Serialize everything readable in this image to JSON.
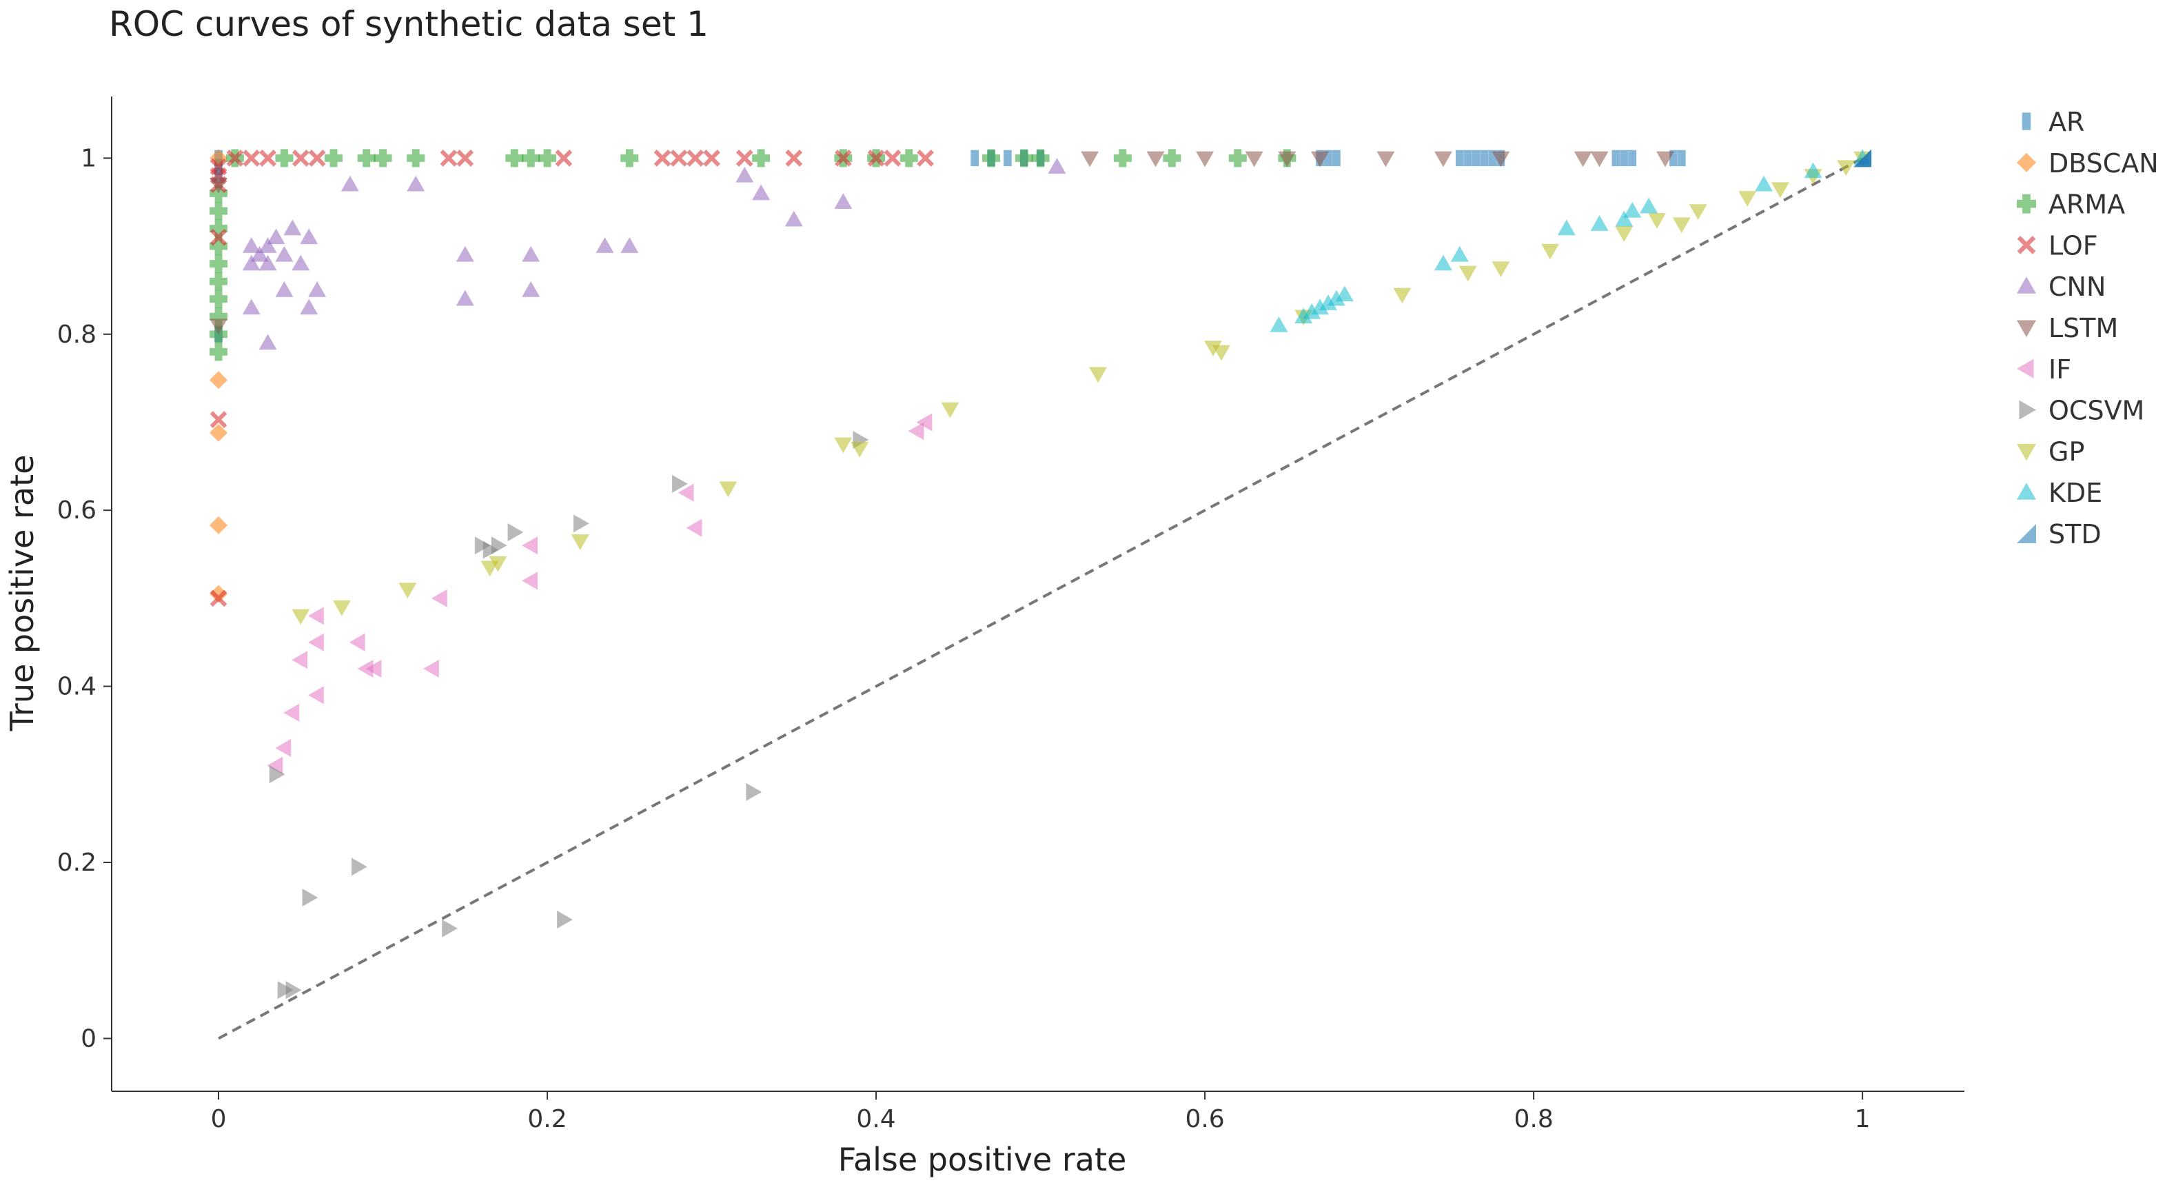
{
  "chart_data": {
    "type": "scatter",
    "title": "ROC curves of synthetic data set 1",
    "xlabel": "False positive rate",
    "ylabel": "True positive rate",
    "xlim": [
      -0.065,
      1.062
    ],
    "ylim": [
      -0.06,
      1.07
    ],
    "xticks": [
      0,
      0.2,
      0.4,
      0.6,
      0.8,
      1
    ],
    "xtick_labels": [
      "0",
      "0.2",
      "0.4",
      "0.6",
      "0.8",
      "1"
    ],
    "yticks": [
      0,
      0.2,
      0.4,
      0.6,
      0.8,
      1
    ],
    "ytick_labels": [
      "0",
      "0.2",
      "0.4",
      "0.6",
      "0.8",
      "1"
    ],
    "grid": false,
    "legend_position": "right",
    "diagonal_reference": {
      "from": [
        0,
        0
      ],
      "to": [
        1,
        1
      ],
      "color": "#777777",
      "style": "dashed"
    },
    "series": [
      {
        "name": "AR",
        "color": "#1f77b4",
        "marker": "square",
        "points": [
          [
            0,
            1
          ],
          [
            0,
            0.99
          ],
          [
            0,
            0.98
          ],
          [
            0,
            0.8
          ],
          [
            0.46,
            1
          ],
          [
            0.47,
            1
          ],
          [
            0.48,
            1
          ],
          [
            0.49,
            1
          ],
          [
            0.5,
            1
          ],
          [
            0.67,
            1
          ],
          [
            0.675,
            1
          ],
          [
            0.68,
            1
          ],
          [
            0.755,
            1
          ],
          [
            0.76,
            1
          ],
          [
            0.765,
            1
          ],
          [
            0.77,
            1
          ],
          [
            0.775,
            1
          ],
          [
            0.78,
            1
          ],
          [
            0.85,
            1
          ],
          [
            0.855,
            1
          ],
          [
            0.86,
            1
          ],
          [
            0.885,
            1
          ],
          [
            0.89,
            1
          ]
        ]
      },
      {
        "name": "DBSCAN",
        "color": "#ff7f0e",
        "marker": "diamond",
        "points": [
          [
            0,
            0.748
          ],
          [
            0,
            0.688
          ],
          [
            0,
            0.583
          ],
          [
            0,
            0.505
          ],
          [
            0,
            1
          ]
        ]
      },
      {
        "name": "ARMA",
        "color": "#2ca02c",
        "marker": "plus",
        "points": [
          [
            0,
            0.78
          ],
          [
            0,
            0.8
          ],
          [
            0,
            0.82
          ],
          [
            0,
            0.84
          ],
          [
            0,
            0.86
          ],
          [
            0,
            0.88
          ],
          [
            0,
            0.9
          ],
          [
            0,
            0.92
          ],
          [
            0,
            0.94
          ],
          [
            0,
            0.96
          ],
          [
            0.01,
            1
          ],
          [
            0.04,
            1
          ],
          [
            0.07,
            1
          ],
          [
            0.09,
            1
          ],
          [
            0.1,
            1
          ],
          [
            0.12,
            1
          ],
          [
            0.18,
            1
          ],
          [
            0.19,
            1
          ],
          [
            0.2,
            1
          ],
          [
            0.25,
            1
          ],
          [
            0.33,
            1
          ],
          [
            0.38,
            1
          ],
          [
            0.4,
            1
          ],
          [
            0.42,
            1
          ],
          [
            0.47,
            1
          ],
          [
            0.49,
            1
          ],
          [
            0.5,
            1
          ],
          [
            0.55,
            1
          ],
          [
            0.58,
            1
          ],
          [
            0.62,
            1
          ],
          [
            0.65,
            1
          ]
        ]
      },
      {
        "name": "LOF",
        "color": "#d62728",
        "marker": "x",
        "points": [
          [
            0,
            0.5
          ],
          [
            0,
            0.703
          ],
          [
            0,
            0.91
          ],
          [
            0,
            0.97
          ],
          [
            0,
            0.98
          ],
          [
            0,
            0.99
          ],
          [
            0.01,
            1
          ],
          [
            0.02,
            1
          ],
          [
            0.03,
            1
          ],
          [
            0.05,
            1
          ],
          [
            0.06,
            1
          ],
          [
            0.14,
            1
          ],
          [
            0.15,
            1
          ],
          [
            0.21,
            1
          ],
          [
            0.27,
            1
          ],
          [
            0.28,
            1
          ],
          [
            0.29,
            1
          ],
          [
            0.3,
            1
          ],
          [
            0.32,
            1
          ],
          [
            0.35,
            1
          ],
          [
            0.38,
            1
          ],
          [
            0.4,
            1
          ],
          [
            0.41,
            1
          ],
          [
            0.43,
            1
          ]
        ]
      },
      {
        "name": "CNN",
        "color": "#9467bd",
        "marker": "triangle-up",
        "points": [
          [
            0.02,
            0.83
          ],
          [
            0.02,
            0.88
          ],
          [
            0.02,
            0.9
          ],
          [
            0.025,
            0.89
          ],
          [
            0.03,
            0.79
          ],
          [
            0.03,
            0.9
          ],
          [
            0.03,
            0.88
          ],
          [
            0.035,
            0.91
          ],
          [
            0.04,
            0.89
          ],
          [
            0.04,
            0.85
          ],
          [
            0.045,
            0.92
          ],
          [
            0.05,
            0.88
          ],
          [
            0.055,
            0.91
          ],
          [
            0.055,
            0.83
          ],
          [
            0.06,
            0.85
          ],
          [
            0.08,
            0.97
          ],
          [
            0.12,
            0.97
          ],
          [
            0.15,
            0.89
          ],
          [
            0.15,
            0.84
          ],
          [
            0.19,
            0.89
          ],
          [
            0.19,
            0.85
          ],
          [
            0.235,
            0.9
          ],
          [
            0.25,
            0.9
          ],
          [
            0.32,
            0.98
          ],
          [
            0.33,
            0.96
          ],
          [
            0.35,
            0.93
          ],
          [
            0.38,
            0.95
          ],
          [
            0.51,
            0.99
          ]
        ]
      },
      {
        "name": "LSTM",
        "color": "#8c564b",
        "marker": "triangle-down",
        "points": [
          [
            0,
            0.81
          ],
          [
            0,
            0.97
          ],
          [
            0.53,
            1
          ],
          [
            0.57,
            1
          ],
          [
            0.6,
            1
          ],
          [
            0.63,
            1
          ],
          [
            0.65,
            1
          ],
          [
            0.67,
            1
          ],
          [
            0.71,
            1
          ],
          [
            0.745,
            1
          ],
          [
            0.78,
            1
          ],
          [
            0.83,
            1
          ],
          [
            0.84,
            1
          ],
          [
            0.88,
            1
          ]
        ]
      },
      {
        "name": "IF",
        "color": "#e377c2",
        "marker": "triangle-left",
        "points": [
          [
            0.035,
            0.31
          ],
          [
            0.04,
            0.33
          ],
          [
            0.045,
            0.37
          ],
          [
            0.05,
            0.43
          ],
          [
            0.06,
            0.39
          ],
          [
            0.06,
            0.45
          ],
          [
            0.06,
            0.48
          ],
          [
            0.085,
            0.45
          ],
          [
            0.09,
            0.42
          ],
          [
            0.095,
            0.42
          ],
          [
            0.13,
            0.42
          ],
          [
            0.135,
            0.5
          ],
          [
            0.19,
            0.52
          ],
          [
            0.19,
            0.56
          ],
          [
            0.29,
            0.58
          ],
          [
            0.285,
            0.62
          ],
          [
            0.425,
            0.69
          ],
          [
            0.43,
            0.7
          ]
        ]
      },
      {
        "name": "OCSVM",
        "color": "#7f7f7f",
        "marker": "triangle-right",
        "points": [
          [
            0.035,
            0.3
          ],
          [
            0.04,
            0.055
          ],
          [
            0.045,
            0.055
          ],
          [
            0.055,
            0.16
          ],
          [
            0.085,
            0.195
          ],
          [
            0.14,
            0.125
          ],
          [
            0.16,
            0.56
          ],
          [
            0.165,
            0.555
          ],
          [
            0.17,
            0.56
          ],
          [
            0.18,
            0.575
          ],
          [
            0.21,
            0.135
          ],
          [
            0.22,
            0.585
          ],
          [
            0.28,
            0.63
          ],
          [
            0.325,
            0.28
          ],
          [
            0.39,
            0.68
          ]
        ]
      },
      {
        "name": "GP",
        "color": "#bcbd22",
        "marker": "triangle-down",
        "points": [
          [
            0.05,
            0.48
          ],
          [
            0.075,
            0.49
          ],
          [
            0.115,
            0.51
          ],
          [
            0.165,
            0.535
          ],
          [
            0.17,
            0.54
          ],
          [
            0.22,
            0.565
          ],
          [
            0.31,
            0.625
          ],
          [
            0.38,
            0.675
          ],
          [
            0.39,
            0.67
          ],
          [
            0.445,
            0.715
          ],
          [
            0.535,
            0.755
          ],
          [
            0.605,
            0.785
          ],
          [
            0.61,
            0.78
          ],
          [
            0.66,
            0.82
          ],
          [
            0.72,
            0.845
          ],
          [
            0.76,
            0.87
          ],
          [
            0.78,
            0.875
          ],
          [
            0.81,
            0.895
          ],
          [
            0.855,
            0.915
          ],
          [
            0.875,
            0.93
          ],
          [
            0.89,
            0.925
          ],
          [
            0.9,
            0.94
          ],
          [
            0.93,
            0.955
          ],
          [
            0.95,
            0.965
          ],
          [
            0.97,
            0.98
          ],
          [
            0.99,
            0.99
          ],
          [
            1,
            1
          ]
        ]
      },
      {
        "name": "KDE",
        "color": "#17becf",
        "marker": "triangle-up",
        "points": [
          [
            0.645,
            0.81
          ],
          [
            0.66,
            0.82
          ],
          [
            0.665,
            0.825
          ],
          [
            0.67,
            0.83
          ],
          [
            0.675,
            0.835
          ],
          [
            0.68,
            0.84
          ],
          [
            0.685,
            0.845
          ],
          [
            0.745,
            0.88
          ],
          [
            0.755,
            0.89
          ],
          [
            0.82,
            0.92
          ],
          [
            0.84,
            0.925
          ],
          [
            0.855,
            0.93
          ],
          [
            0.86,
            0.94
          ],
          [
            0.87,
            0.945
          ],
          [
            0.94,
            0.97
          ],
          [
            0.97,
            0.985
          ],
          [
            1,
            1
          ]
        ]
      },
      {
        "name": "STD",
        "color": "#1f77b4",
        "marker": "triangle-bottom-right",
        "points": [
          [
            1,
            1
          ]
        ]
      }
    ]
  }
}
